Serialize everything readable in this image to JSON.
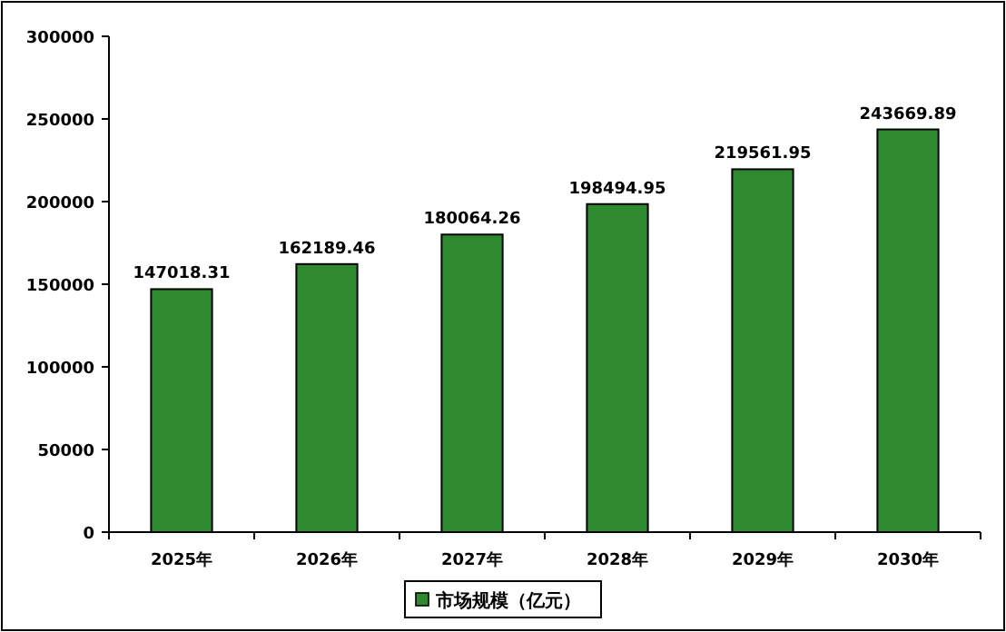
{
  "chart_data": {
    "type": "bar",
    "categories": [
      "2025年",
      "2026年",
      "2027年",
      "2028年",
      "2029年",
      "2030年"
    ],
    "series": [
      {
        "name": "市场规模（亿元）",
        "color": "#2f8a2f",
        "values": [
          147018.31,
          162189.46,
          180064.26,
          198494.95,
          219561.95,
          243669.89
        ]
      }
    ],
    "ylim": [
      0,
      300000
    ],
    "yticks": [
      0,
      50000,
      100000,
      150000,
      200000,
      250000,
      300000
    ],
    "data_labels": true,
    "grid": false,
    "legend": "bottom"
  }
}
